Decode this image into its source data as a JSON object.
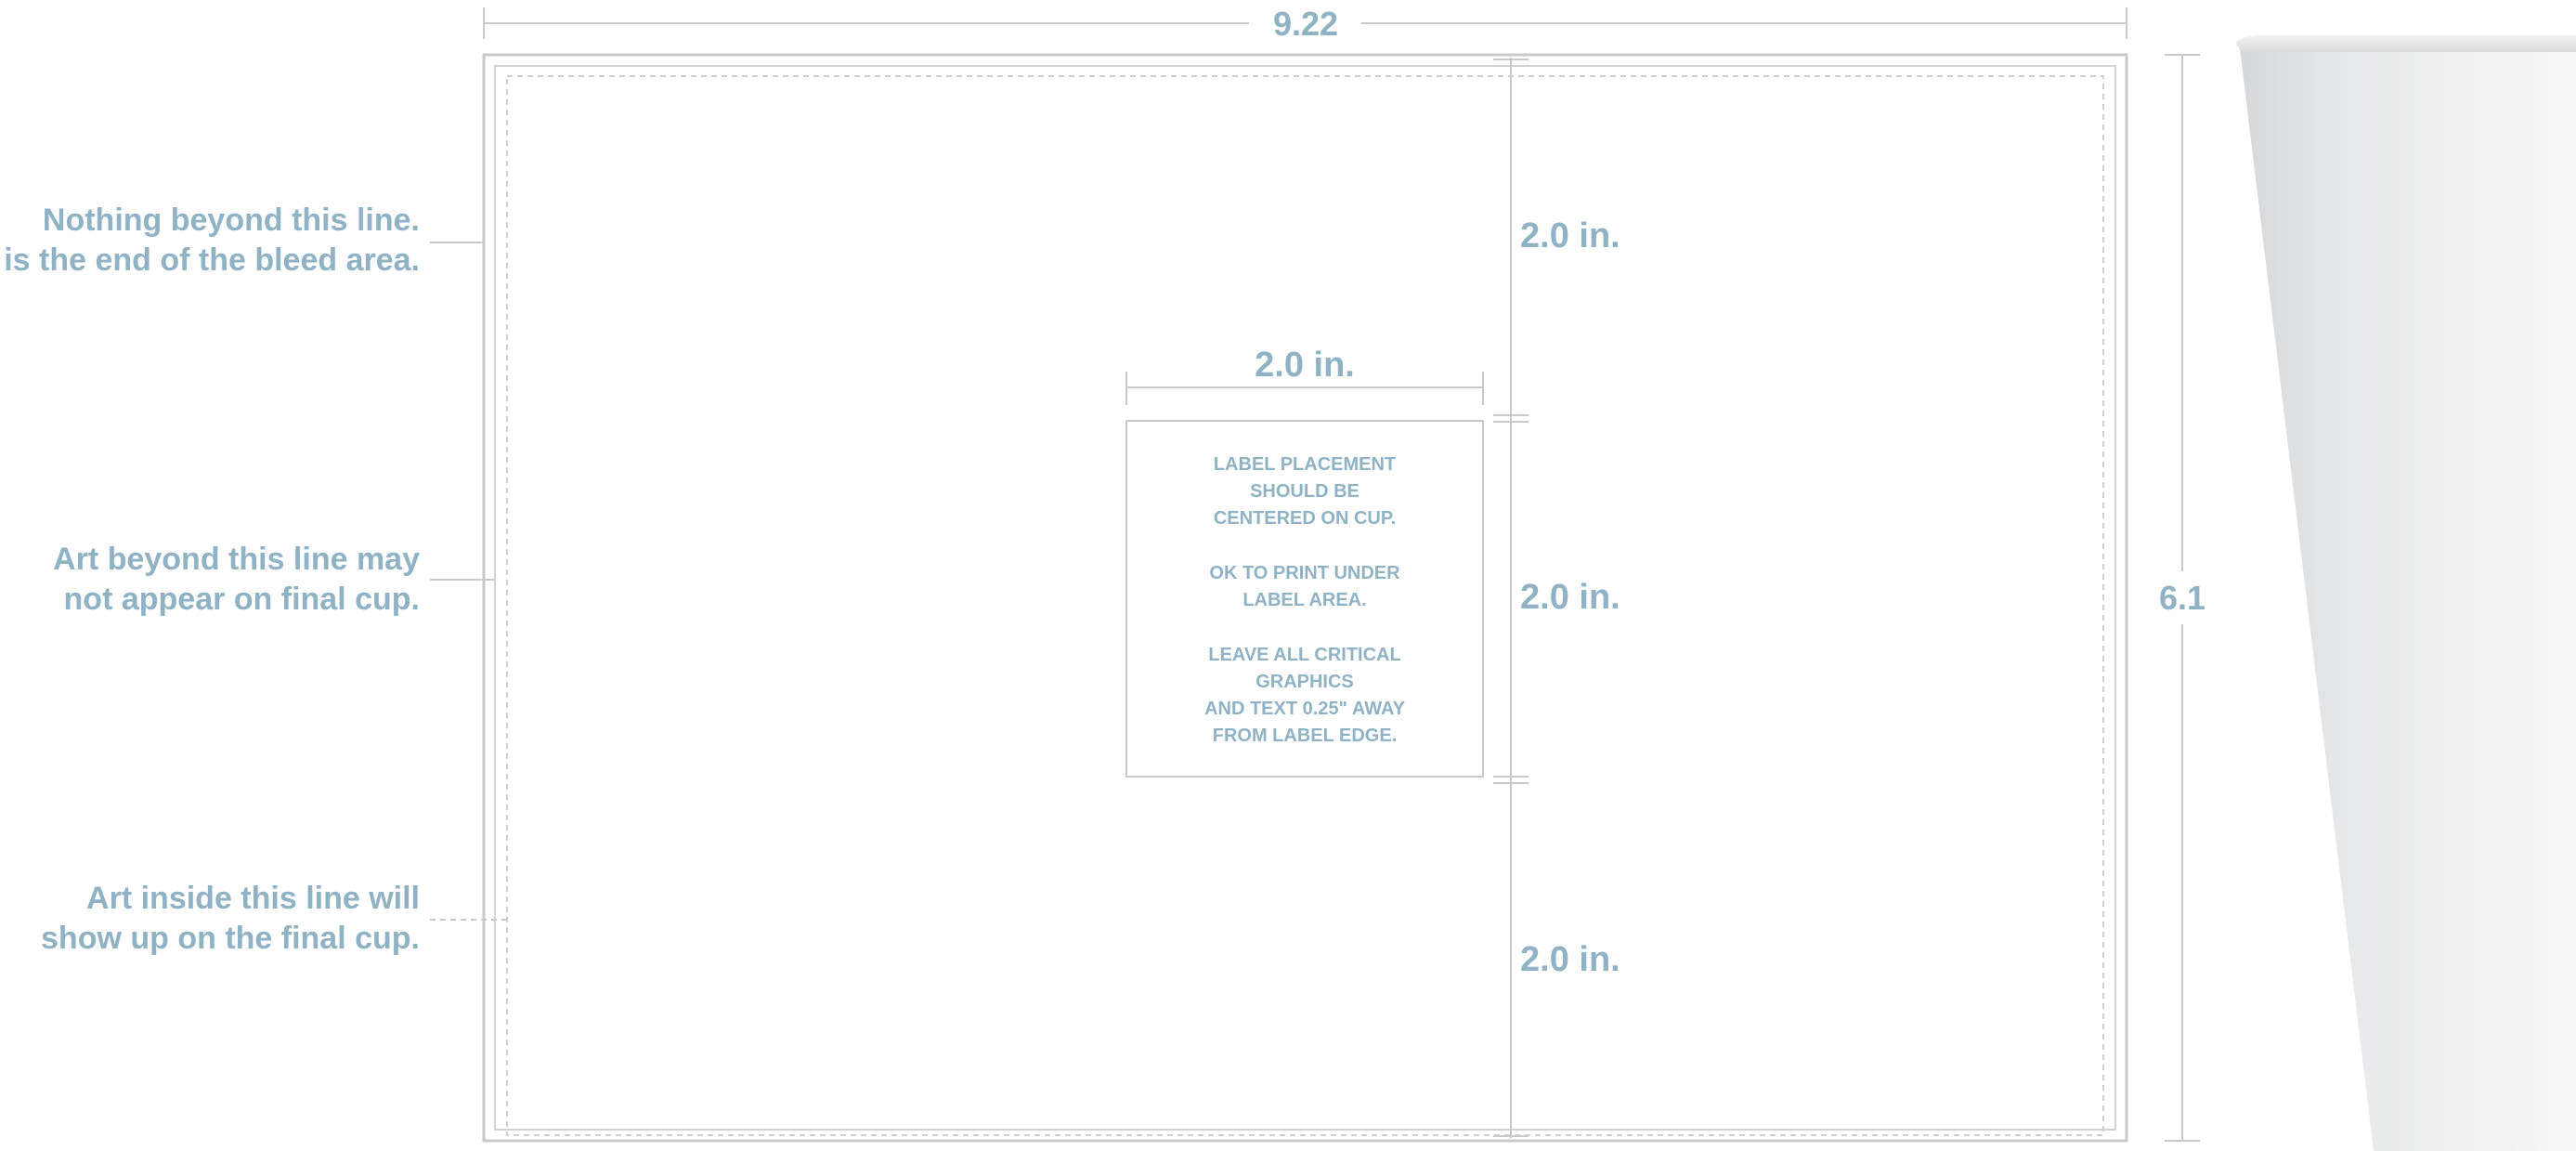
{
  "dimensions": {
    "width_label": "9.22",
    "height_label": "6.1",
    "label_width_label": "2.0 in.",
    "segment_top_label": "2.0 in.",
    "segment_middle_label": "2.0 in.",
    "segment_bottom_label": "2.0 in."
  },
  "annotations": {
    "bleed": {
      "line1": "Nothing beyond this line.",
      "line2": "This is the end of the bleed area."
    },
    "trim": {
      "line1": "Art beyond this line may",
      "line2": "not appear on final cup."
    },
    "safe": {
      "line1": "Art inside this line will",
      "line2": "show up on the final cup."
    }
  },
  "label_box": {
    "para1": [
      "LABEL PLACEMENT",
      "SHOULD BE",
      "CENTERED ON CUP."
    ],
    "para2": [
      "OK TO PRINT UNDER",
      "LABEL AREA."
    ],
    "para3": [
      "LEAVE ALL CRITICAL",
      "GRAPHICS",
      "AND TEXT 0.25\" AWAY",
      "FROM LABEL EDGE."
    ]
  },
  "colors": {
    "annotation_text": "#8fb2c4",
    "guide_lines": "#c9c9c9",
    "cup_shading": "#e4e5e7"
  },
  "icons": {
    "cup": "cup-illustration"
  }
}
